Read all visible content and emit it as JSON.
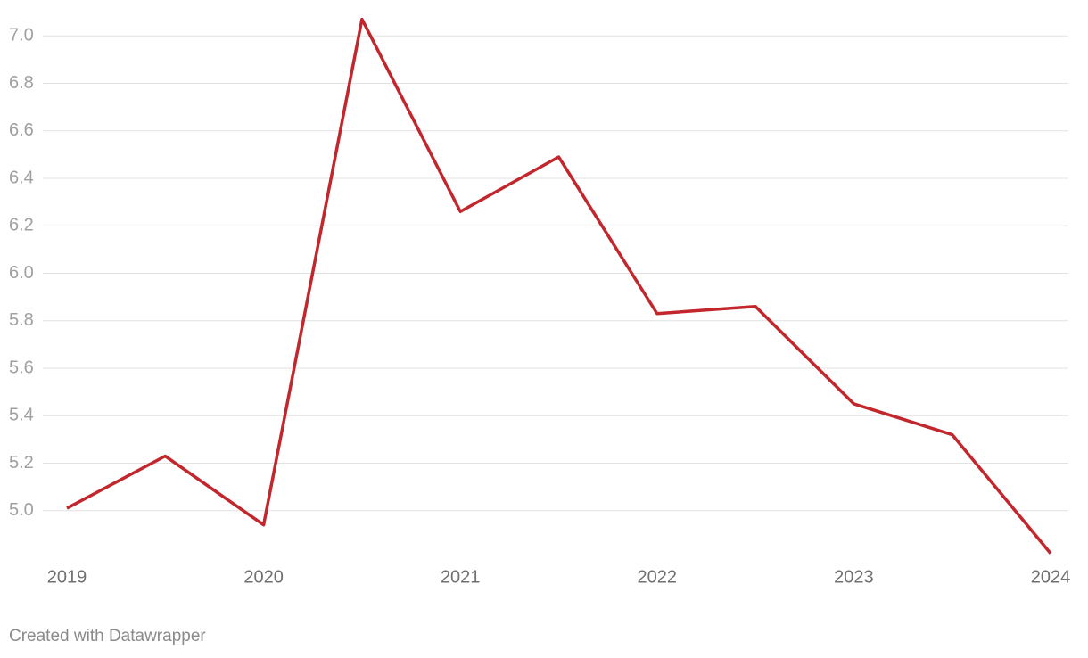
{
  "chart_data": {
    "type": "line",
    "x": [
      2019,
      2019.5,
      2020,
      2020.5,
      2021,
      2021.5,
      2022,
      2022.5,
      2023,
      2023.5,
      2024
    ],
    "series": [
      {
        "name": null,
        "color": "#c1272d",
        "values": [
          5.01,
          5.23,
          4.94,
          7.07,
          6.26,
          6.49,
          5.83,
          5.86,
          5.45,
          5.32,
          4.82
        ]
      }
    ],
    "xlim": [
      2019,
      2024
    ],
    "xticks": [
      2019,
      2020,
      2021,
      2022,
      2023,
      2024
    ],
    "ylim": [
      4.8,
      7.1
    ],
    "yticks": [
      {
        "value": 5,
        "label": "5.0"
      },
      {
        "value": 5.2,
        "label": "5.2"
      },
      {
        "value": 5.4,
        "label": "5.4"
      },
      {
        "value": 5.6,
        "label": "5.6"
      },
      {
        "value": 5.8,
        "label": "5.8"
      },
      {
        "value": 6,
        "label": "6.0"
      },
      {
        "value": 6.2,
        "label": "6.2"
      },
      {
        "value": 6.4,
        "label": "6.4"
      },
      {
        "value": 6.6,
        "label": "6.6"
      },
      {
        "value": 6.8,
        "label": "6.8"
      },
      {
        "value": 7,
        "label": "7.0"
      }
    ],
    "grid": true,
    "footer": "Created with Datawrapper"
  }
}
